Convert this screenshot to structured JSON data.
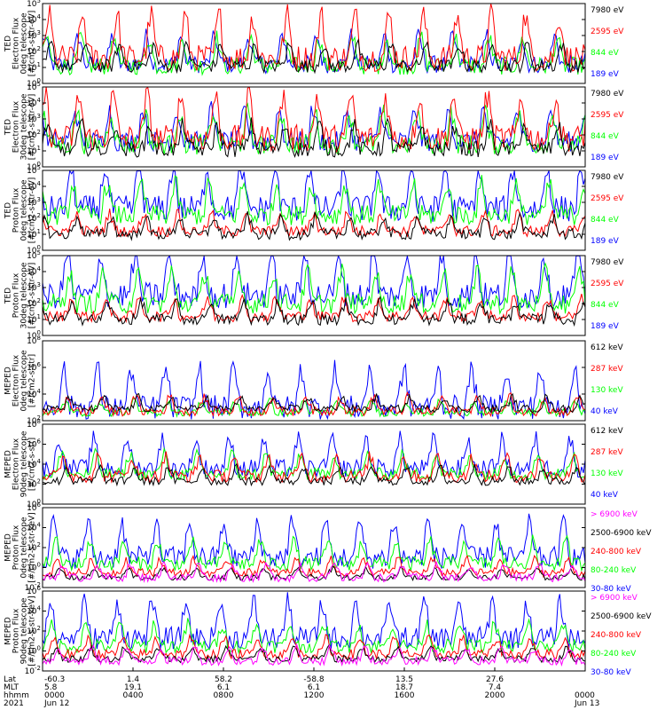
{
  "colors": {
    "black": "#000000",
    "red": "#ff0000",
    "green": "#00ff00",
    "blue": "#0000ff",
    "magenta": "#ff00ff"
  },
  "chart_data": [
    {
      "type": "line",
      "ylabel_lines": [
        "TED",
        "Electron Flux",
        "0deg telescope",
        "[#/cm2-s-str-eV]"
      ],
      "y_log_range": [
        0,
        5
      ],
      "y_tick_labels": [
        "10^0",
        "10^1",
        "10^2",
        "10^3",
        "10^4",
        "10^5"
      ],
      "series": [
        {
          "name": "7980 eV",
          "color": "#000000",
          "base": 1.1,
          "spread": 0.6
        },
        {
          "name": "2595 eV",
          "color": "#ff0000",
          "base": 1.6,
          "spread": 1.2
        },
        {
          "name": "844 eV",
          "color": "#00ff00",
          "base": 1.1,
          "spread": 0.8
        },
        {
          "name": "189 eV",
          "color": "#0000ff",
          "base": 1.2,
          "spread": 0.8
        }
      ]
    },
    {
      "type": "line",
      "ylabel_lines": [
        "TED",
        "Electron Flux",
        "30deg telescope",
        "[#/cm2-s-str-eV]"
      ],
      "y_log_range": [
        0,
        5
      ],
      "y_tick_labels": [
        "10^0",
        "10^1",
        "10^2",
        "10^3",
        "10^4",
        "10^5"
      ],
      "series": [
        {
          "name": "7980 eV",
          "color": "#000000",
          "base": 1.1,
          "spread": 0.7
        },
        {
          "name": "2595 eV",
          "color": "#ff0000",
          "base": 1.8,
          "spread": 1.2
        },
        {
          "name": "844 eV",
          "color": "#00ff00",
          "base": 1.4,
          "spread": 0.9
        },
        {
          "name": "189 eV",
          "color": "#0000ff",
          "base": 1.6,
          "spread": 0.9
        }
      ]
    },
    {
      "type": "line",
      "ylabel_lines": [
        "TED",
        "Proton Flux",
        "0deg telescope",
        "[#/cm2-s-str-eV]"
      ],
      "y_log_range": [
        0,
        5
      ],
      "y_tick_labels": [
        "10^0",
        "10^1",
        "10^2",
        "10^3",
        "10^4",
        "10^5"
      ],
      "series": [
        {
          "name": "7980 eV",
          "color": "#000000",
          "base": 1.0,
          "spread": 0.5
        },
        {
          "name": "2595 eV",
          "color": "#ff0000",
          "base": 1.2,
          "spread": 0.5
        },
        {
          "name": "844 eV",
          "color": "#00ff00",
          "base": 2.2,
          "spread": 0.9
        },
        {
          "name": "189 eV",
          "color": "#0000ff",
          "base": 2.6,
          "spread": 1.2
        }
      ]
    },
    {
      "type": "line",
      "ylabel_lines": [
        "TED",
        "Proton Flux",
        "30deg telescope",
        "[#/cm2-s-str-eV]"
      ],
      "y_log_range": [
        0,
        5
      ],
      "y_tick_labels": [
        "10^0",
        "10^1",
        "10^2",
        "10^3",
        "10^4",
        "10^5"
      ],
      "series": [
        {
          "name": "7980 eV",
          "color": "#000000",
          "base": 1.0,
          "spread": 0.5
        },
        {
          "name": "2595 eV",
          "color": "#ff0000",
          "base": 1.2,
          "spread": 0.5
        },
        {
          "name": "844 eV",
          "color": "#00ff00",
          "base": 2.0,
          "spread": 0.9
        },
        {
          "name": "189 eV",
          "color": "#0000ff",
          "base": 2.5,
          "spread": 1.2
        }
      ]
    },
    {
      "type": "line",
      "ylabel_lines": [
        "MEPED",
        "Electron Flux",
        "0deg telescope",
        "[#/cm2-s-str]"
      ],
      "y_log_range": [
        2,
        8
      ],
      "y_tick_labels": [
        "10^2",
        "10^4",
        "10^6",
        "10^8"
      ],
      "series": [
        {
          "name": "612 keV",
          "color": "#000000",
          "base": 2.9,
          "spread": 0.4
        },
        {
          "name": "287 keV",
          "color": "#ff0000",
          "base": 2.7,
          "spread": 0.5
        },
        {
          "name": "130 keV",
          "color": "#00ff00",
          "base": 2.6,
          "spread": 0.4
        },
        {
          "name": "40 keV",
          "color": "#0000ff",
          "base": 3.0,
          "spread": 1.3
        }
      ]
    },
    {
      "type": "line",
      "ylabel_lines": [
        "MEPED",
        "Electron Flux",
        "90deg telescope",
        "[#/cm2-s-str]"
      ],
      "y_log_range": [
        0,
        8
      ],
      "y_tick_labels": [
        "10^0",
        "10^2",
        "10^4",
        "10^6",
        "10^8"
      ],
      "series": [
        {
          "name": "612 keV",
          "color": "#000000",
          "base": 2.3,
          "spread": 0.6
        },
        {
          "name": "287 keV",
          "color": "#ff0000",
          "base": 2.8,
          "spread": 0.9
        },
        {
          "name": "130 keV",
          "color": "#00ff00",
          "base": 3.0,
          "spread": 0.9
        },
        {
          "name": "40 keV",
          "color": "#0000ff",
          "base": 3.6,
          "spread": 1.3
        }
      ]
    },
    {
      "type": "line",
      "ylabel_lines": [
        "MEPED",
        "Proton Flux",
        "0deg telescope",
        "[#/cm2-s-str-keV]"
      ],
      "y_log_range": [
        -2,
        6
      ],
      "y_tick_labels": [
        "10^-2",
        "10^0",
        "10^2",
        "10^4",
        "10^6"
      ],
      "series": [
        {
          "name": "> 6900 keV",
          "color": "#ff00ff",
          "base": -1.0,
          "spread": 0.6
        },
        {
          "name": "2500-6900 keV",
          "color": "#000000",
          "base": -1.0,
          "spread": 0.4
        },
        {
          "name": "240-800 keV",
          "color": "#ff0000",
          "base": -0.5,
          "spread": 0.6
        },
        {
          "name": "80-240 keV",
          "color": "#00ff00",
          "base": 0.4,
          "spread": 1.0
        },
        {
          "name": "30-80 keV",
          "color": "#0000ff",
          "base": 1.0,
          "spread": 1.6
        }
      ]
    },
    {
      "type": "line",
      "ylabel_lines": [
        "MEPED",
        "Proton Flux",
        "90deg telescope",
        "[#/cm2-s-str-keV]"
      ],
      "y_log_range": [
        -2,
        6
      ],
      "y_tick_labels": [
        "10^-2",
        "10^0",
        "10^2",
        "10^4",
        "10^6"
      ],
      "series": [
        {
          "name": "> 6900 keV",
          "color": "#ff00ff",
          "base": -1.0,
          "spread": 0.6
        },
        {
          "name": "2500-6900 keV",
          "color": "#000000",
          "base": -0.8,
          "spread": 0.5
        },
        {
          "name": "240-800 keV",
          "color": "#ff0000",
          "base": -0.3,
          "spread": 0.7
        },
        {
          "name": "80-240 keV",
          "color": "#00ff00",
          "base": 0.5,
          "spread": 1.0
        },
        {
          "name": "30-80 keV",
          "color": "#0000ff",
          "base": 1.3,
          "spread": 1.6
        }
      ]
    }
  ],
  "x_axis": {
    "row_labels": [
      "Lat",
      "MLT",
      "hhmm",
      "2021"
    ],
    "ticks": [
      {
        "lat": "-60.3",
        "mlt": "5.8",
        "hhmm": "0000",
        "date": "Jun 12"
      },
      {
        "lat": "1.4",
        "mlt": "19.1",
        "hhmm": "0400",
        "date": ""
      },
      {
        "lat": "58.2",
        "mlt": "6.1",
        "hhmm": "0800",
        "date": ""
      },
      {
        "lat": "-58.8",
        "mlt": "6.1",
        "hhmm": "1200",
        "date": ""
      },
      {
        "lat": "13.5",
        "mlt": "18.7",
        "hhmm": "1600",
        "date": ""
      },
      {
        "lat": "27.6",
        "mlt": "7.4",
        "hhmm": "2000",
        "date": ""
      },
      {
        "lat": "",
        "mlt": "",
        "hhmm": "0000",
        "date": "Jun 13"
      }
    ]
  }
}
